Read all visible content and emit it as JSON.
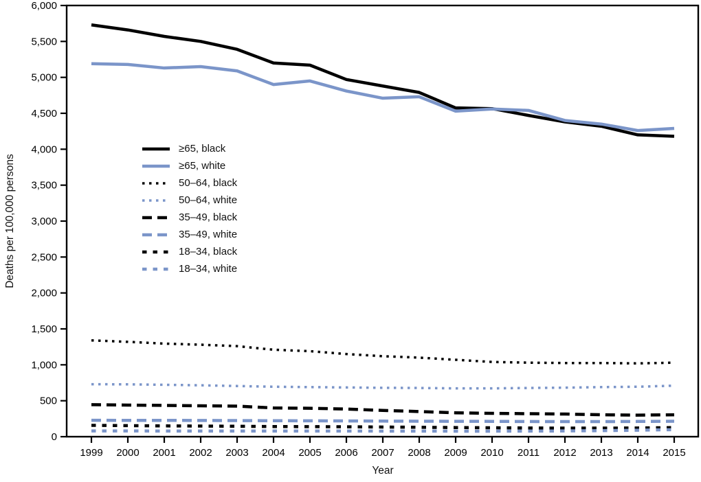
{
  "chart_data": {
    "type": "line",
    "title": "",
    "xlabel": "Year",
    "ylabel": "Deaths per 100,000 persons",
    "grid": false,
    "legend_position": "upper-left-inside",
    "ylim": [
      0,
      6000
    ],
    "ytick_step": 500,
    "yticks": [
      "0",
      "500",
      "1,000",
      "1,500",
      "2,000",
      "2,500",
      "3,000",
      "3,500",
      "4,000",
      "4,500",
      "5,000",
      "5,500",
      "6,000"
    ],
    "x": [
      "1999",
      "2000",
      "2001",
      "2002",
      "2003",
      "2004",
      "2005",
      "2006",
      "2007",
      "2008",
      "2009",
      "2010",
      "2011",
      "2012",
      "2013",
      "2014",
      "2015"
    ],
    "colors": {
      "black_series": "#000000",
      "white_series": "#7b95c9"
    },
    "series": [
      {
        "id": "ge65-black",
        "name": "≥65, black",
        "color": "#000000",
        "dash": "solid",
        "width": 4.5,
        "values": [
          5730,
          5660,
          5570,
          5500,
          5390,
          5200,
          5170,
          4970,
          4880,
          4790,
          4575,
          4565,
          4470,
          4380,
          4320,
          4200,
          4180
        ]
      },
      {
        "id": "ge65-white",
        "name": "≥65, white",
        "color": "#7b95c9",
        "dash": "solid",
        "width": 4.5,
        "values": [
          5190,
          5180,
          5130,
          5150,
          5090,
          4900,
          4950,
          4810,
          4710,
          4730,
          4530,
          4560,
          4540,
          4400,
          4350,
          4260,
          4290
        ]
      },
      {
        "id": "50-64-black",
        "name": "50–64, black",
        "color": "#000000",
        "dash": "dotted",
        "width": 3.5,
        "values": [
          1340,
          1320,
          1295,
          1280,
          1260,
          1210,
          1190,
          1150,
          1120,
          1100,
          1070,
          1040,
          1030,
          1025,
          1025,
          1020,
          1030
        ]
      },
      {
        "id": "50-64-white",
        "name": "50–64, white",
        "color": "#7b95c9",
        "dash": "dotted",
        "width": 3.5,
        "values": [
          730,
          728,
          722,
          715,
          705,
          695,
          690,
          685,
          680,
          678,
          672,
          672,
          678,
          682,
          690,
          695,
          710
        ]
      },
      {
        "id": "35-49-black",
        "name": "35–49, black",
        "color": "#000000",
        "dash": "longdash",
        "width": 4.5,
        "values": [
          445,
          440,
          435,
          430,
          425,
          400,
          395,
          385,
          365,
          350,
          332,
          325,
          320,
          315,
          305,
          300,
          305
        ]
      },
      {
        "id": "35-49-white",
        "name": "35–49, white",
        "color": "#7b95c9",
        "dash": "longdash",
        "width": 4.5,
        "values": [
          228,
          227,
          227,
          226,
          224,
          222,
          221,
          219,
          217,
          215,
          214,
          213,
          211,
          210,
          210,
          212,
          215
        ]
      },
      {
        "id": "18-34-black",
        "name": "18–34, black",
        "color": "#000000",
        "dash": "shortdash",
        "width": 4.5,
        "values": [
          158,
          154,
          150,
          148,
          145,
          141,
          140,
          138,
          134,
          131,
          127,
          124,
          121,
          119,
          119,
          121,
          127
        ]
      },
      {
        "id": "18-34-white",
        "name": "18–34, white",
        "color": "#7b95c9",
        "dash": "shortdash",
        "width": 4.5,
        "values": [
          80,
          80,
          79,
          79,
          79,
          79,
          79,
          79,
          78,
          78,
          77,
          77,
          78,
          80,
          84,
          90,
          98
        ]
      }
    ]
  }
}
